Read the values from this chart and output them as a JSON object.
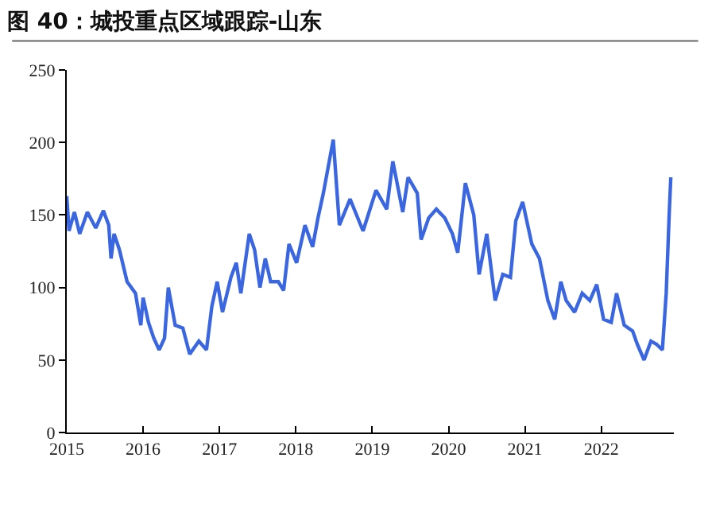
{
  "chart_data": {
    "type": "line",
    "title": "图 40：城投重点区域跟踪-山东",
    "x": [
      2015.0,
      2015.03,
      2015.1,
      2015.17,
      2015.27,
      2015.38,
      2015.48,
      2015.55,
      2015.58,
      2015.62,
      2015.69,
      2015.79,
      2015.9,
      2015.97,
      2016.0,
      2016.07,
      2016.14,
      2016.21,
      2016.28,
      2016.33,
      2016.42,
      2016.52,
      2016.61,
      2016.73,
      2016.83,
      2016.9,
      2016.97,
      2017.04,
      2017.15,
      2017.22,
      2017.28,
      2017.39,
      2017.46,
      2017.53,
      2017.6,
      2017.67,
      2017.77,
      2017.84,
      2017.91,
      2018.01,
      2018.12,
      2018.22,
      2018.29,
      2018.36,
      2018.49,
      2018.57,
      2018.71,
      2018.88,
      2019.05,
      2019.19,
      2019.27,
      2019.4,
      2019.47,
      2019.59,
      2019.64,
      2019.74,
      2019.84,
      2019.95,
      2020.05,
      2020.12,
      2020.22,
      2020.33,
      2020.4,
      2020.5,
      2020.61,
      2020.71,
      2020.81,
      2020.88,
      2020.97,
      2021.09,
      2021.19,
      2021.3,
      2021.39,
      2021.47,
      2021.54,
      2021.65,
      2021.75,
      2021.85,
      2021.94,
      2022.03,
      2022.13,
      2022.2,
      2022.3,
      2022.41,
      2022.47,
      2022.56,
      2022.65,
      2022.72,
      2022.8,
      2022.85,
      2022.89,
      2022.91
    ],
    "series": [
      {
        "color": "#3a66e0",
        "values": [
          163,
          139,
          152,
          137,
          152,
          141,
          153,
          143,
          120,
          137,
          126,
          104,
          96,
          74,
          93,
          76,
          65,
          57,
          65,
          100,
          74,
          72,
          54,
          63,
          57,
          87,
          104,
          83,
          107,
          117,
          96,
          137,
          126,
          100,
          120,
          104,
          104,
          98,
          130,
          117,
          143,
          128,
          148,
          165,
          202,
          143,
          161,
          139,
          167,
          154,
          187,
          152,
          176,
          165,
          133,
          148,
          154,
          148,
          137,
          124,
          172,
          150,
          109,
          137,
          91,
          109,
          107,
          146,
          159,
          130,
          120,
          91,
          78,
          104,
          91,
          83,
          96,
          91,
          102,
          78,
          76,
          96,
          74,
          70,
          61,
          50,
          63,
          61,
          57,
          96,
          152,
          176
        ]
      }
    ],
    "xlim": [
      2015,
      2022.95
    ],
    "xticks": [
      2015,
      2016,
      2017,
      2018,
      2019,
      2020,
      2021,
      2022
    ],
    "ylim": [
      0,
      250
    ],
    "yticks": [
      0,
      50,
      100,
      150,
      200,
      250
    ],
    "grid": false,
    "marker": "none",
    "line_style": "solid"
  }
}
